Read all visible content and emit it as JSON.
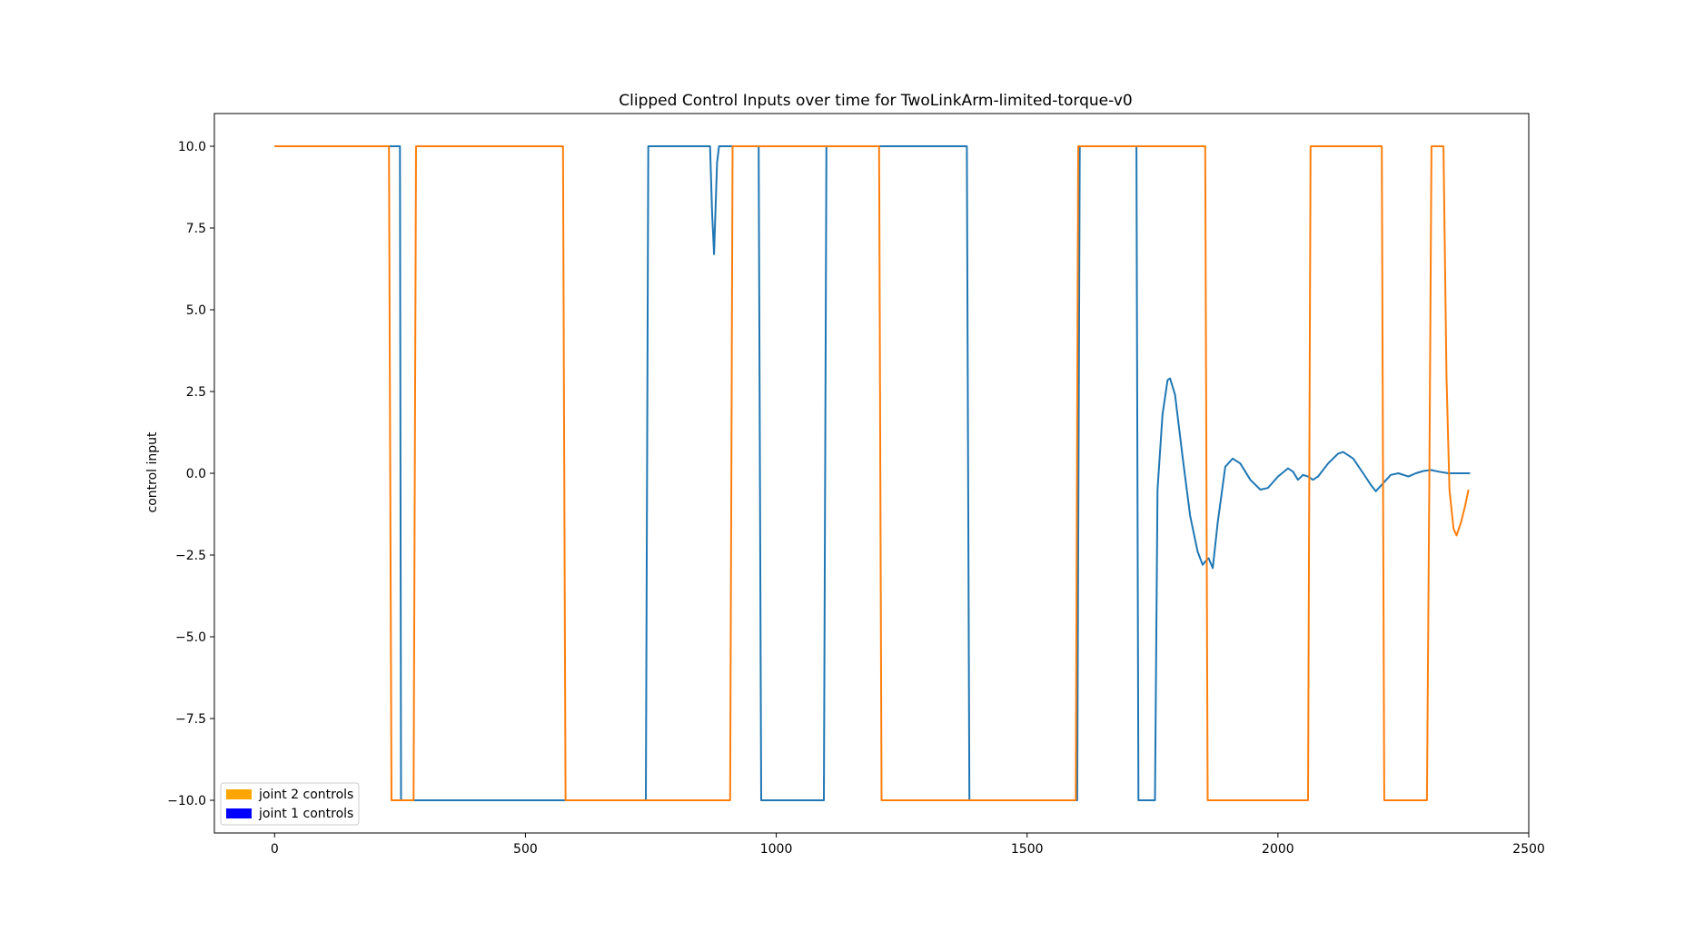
{
  "chart_data": {
    "type": "line",
    "title": "Clipped Control Inputs over time for TwoLinkArm-limited-torque-v0",
    "xlabel": "",
    "ylabel": "control input",
    "xlim": [
      -120,
      2500
    ],
    "ylim": [
      -11.0,
      11.0
    ],
    "xticks": [
      0,
      500,
      1000,
      1500,
      2000,
      2500
    ],
    "xtick_labels": [
      "0",
      "500",
      "1000",
      "1500",
      "2000",
      "2500"
    ],
    "yticks": [
      10.0,
      7.5,
      5.0,
      2.5,
      0.0,
      -2.5,
      -5.0,
      -7.5,
      -10.0
    ],
    "ytick_labels": [
      "10.0",
      "7.5",
      "5.0",
      "2.5",
      "0.0",
      "−2.5",
      "−5.0",
      "−7.5",
      "−10.0"
    ],
    "grid": false,
    "legend_position": "lower-left",
    "legend": [
      {
        "label": "joint 2 controls",
        "color": "#ffa500"
      },
      {
        "label": "joint 1 controls",
        "color": "#0000ff"
      }
    ],
    "series": [
      {
        "color": "#1f77b4",
        "points": [
          [
            0,
            10
          ],
          [
            250,
            10
          ],
          [
            252,
            -10
          ],
          [
            740,
            -10
          ],
          [
            745,
            10
          ],
          [
            868,
            10
          ],
          [
            872,
            8
          ],
          [
            876,
            6.7
          ],
          [
            882,
            9.5
          ],
          [
            886,
            10
          ],
          [
            965,
            10
          ],
          [
            970,
            -10
          ],
          [
            1095,
            -10
          ],
          [
            1100,
            10
          ],
          [
            1380,
            10
          ],
          [
            1385,
            -10
          ],
          [
            1600,
            -10
          ],
          [
            1605,
            10
          ],
          [
            1718,
            10
          ],
          [
            1722,
            -10
          ],
          [
            1755,
            -10
          ],
          [
            1760,
            -0.5
          ],
          [
            1770,
            1.8
          ],
          [
            1780,
            2.85
          ],
          [
            1785,
            2.9
          ],
          [
            1795,
            2.4
          ],
          [
            1810,
            0.5
          ],
          [
            1825,
            -1.3
          ],
          [
            1840,
            -2.4
          ],
          [
            1850,
            -2.8
          ],
          [
            1855,
            -2.7
          ],
          [
            1862,
            -2.6
          ],
          [
            1870,
            -2.9
          ],
          [
            1880,
            -1.5
          ],
          [
            1895,
            0.2
          ],
          [
            1910,
            0.45
          ],
          [
            1925,
            0.3
          ],
          [
            1945,
            -0.2
          ],
          [
            1965,
            -0.5
          ],
          [
            1980,
            -0.45
          ],
          [
            2000,
            -0.1
          ],
          [
            2020,
            0.15
          ],
          [
            2030,
            0.05
          ],
          [
            2040,
            -0.2
          ],
          [
            2050,
            -0.05
          ],
          [
            2060,
            -0.1
          ],
          [
            2070,
            -0.2
          ],
          [
            2080,
            -0.1
          ],
          [
            2100,
            0.3
          ],
          [
            2120,
            0.6
          ],
          [
            2130,
            0.65
          ],
          [
            2150,
            0.45
          ],
          [
            2170,
            0.0
          ],
          [
            2185,
            -0.35
          ],
          [
            2195,
            -0.55
          ],
          [
            2210,
            -0.3
          ],
          [
            2225,
            -0.05
          ],
          [
            2240,
            0.0
          ],
          [
            2260,
            -0.1
          ],
          [
            2275,
            0.0
          ],
          [
            2290,
            0.07
          ],
          [
            2305,
            0.1
          ],
          [
            2320,
            0.05
          ],
          [
            2340,
            0.0
          ],
          [
            2360,
            0.0
          ],
          [
            2383,
            0.0
          ]
        ]
      },
      {
        "color": "#ff7f0e",
        "points": [
          [
            0,
            10
          ],
          [
            228,
            10
          ],
          [
            233,
            -10
          ],
          [
            277,
            -10
          ],
          [
            282,
            10
          ],
          [
            575,
            10
          ],
          [
            580,
            -10
          ],
          [
            908,
            -10
          ],
          [
            913,
            10
          ],
          [
            1205,
            10
          ],
          [
            1210,
            -10
          ],
          [
            1597,
            -10
          ],
          [
            1602,
            10
          ],
          [
            1855,
            10
          ],
          [
            1860,
            -10
          ],
          [
            2060,
            -10
          ],
          [
            2065,
            10
          ],
          [
            2207,
            10
          ],
          [
            2212,
            -10
          ],
          [
            2297,
            -10
          ],
          [
            2302,
            0
          ],
          [
            2306,
            10
          ],
          [
            2330,
            10
          ],
          [
            2336,
            3
          ],
          [
            2342,
            -0.5
          ],
          [
            2350,
            -1.7
          ],
          [
            2356,
            -1.9
          ],
          [
            2365,
            -1.5
          ],
          [
            2373,
            -1.0
          ],
          [
            2380,
            -0.5
          ]
        ]
      }
    ]
  }
}
